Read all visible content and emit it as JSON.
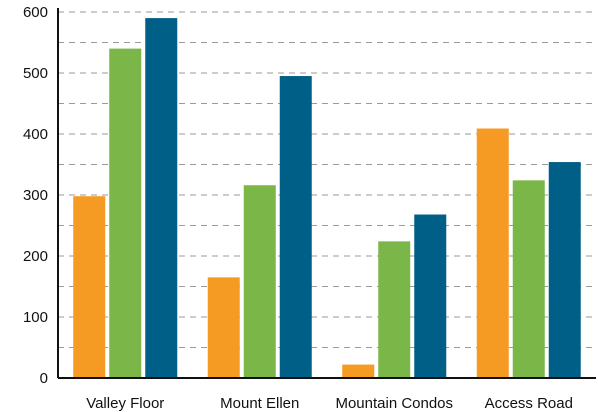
{
  "chart_data": {
    "type": "bar",
    "title": "",
    "xlabel": "",
    "ylabel": "",
    "categories": [
      "Valley Floor",
      "Mount Ellen",
      "Mountain Condos",
      "Access Road"
    ],
    "series": [
      {
        "color": "#f59a23",
        "values": [
          298,
          165,
          22,
          409
        ]
      },
      {
        "color": "#7ab648",
        "values": [
          540,
          316,
          224,
          324
        ]
      },
      {
        "color": "#005f87",
        "values": [
          590,
          495,
          268,
          354
        ]
      }
    ],
    "ylim": [
      0,
      600
    ],
    "yticks": [
      0,
      100,
      200,
      300,
      400,
      500,
      600
    ],
    "grid": true,
    "legend": "none"
  }
}
